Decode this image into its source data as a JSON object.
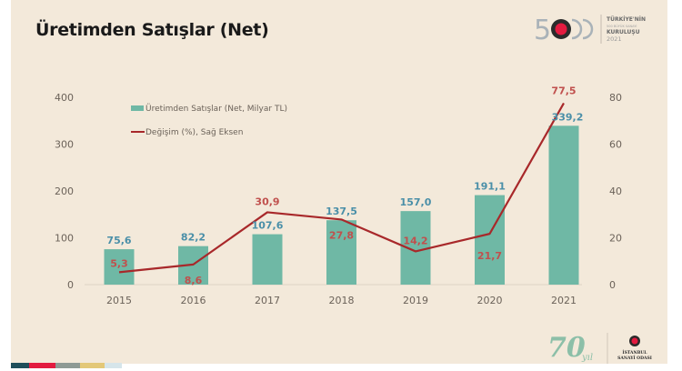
{
  "header": {
    "title": "Üretimden Satışlar (Net)"
  },
  "logos": {
    "top": {
      "number": "500",
      "line1": "TÜRKİYE'NİN",
      "line2": "500 BÜYÜK SANAYİ",
      "line3": "KURULUŞU",
      "year": "2021"
    },
    "bottom": {
      "number": "70",
      "suffix": "yıl",
      "org_line1": "İSTANBUL",
      "org_line2": "SANAYİ ODASI"
    }
  },
  "footer_stripe_colors": [
    "#1f4e5a",
    "#e31b40",
    "#8e9a95",
    "#e3c878",
    "#d6e5ea"
  ],
  "chart_data": {
    "type": "bar",
    "title": "Üretimden Satışlar (Net)",
    "categories": [
      "2015",
      "2016",
      "2017",
      "2018",
      "2019",
      "2020",
      "2021"
    ],
    "series": [
      {
        "name": "Üretimden Satışlar (Net, Milyar TL)",
        "type": "bar",
        "axis": "left",
        "color": "#6fb8a5",
        "label_color": "#4a8fa8",
        "values": [
          75.6,
          82.2,
          107.6,
          137.5,
          157.0,
          191.1,
          339.2
        ],
        "labels": [
          "75,6",
          "82,2",
          "107,6",
          "137,5",
          "157,0",
          "191,1",
          "339,2"
        ]
      },
      {
        "name": "Değişim (%), Sağ Eksen",
        "type": "line",
        "axis": "right",
        "color": "#a8282a",
        "label_color": "#c0504d",
        "values": [
          5.3,
          8.6,
          30.9,
          27.8,
          14.2,
          21.7,
          77.5
        ],
        "labels": [
          "5,3",
          "8,6",
          "30,9",
          "27,8",
          "14,2",
          "21,7",
          "77,5"
        ]
      }
    ],
    "left_axis": {
      "min": 0,
      "max": 400,
      "ticks": [
        0,
        100,
        200,
        300,
        400
      ],
      "tick_labels": [
        "0",
        "100",
        "200",
        "300",
        "400"
      ]
    },
    "right_axis": {
      "min": 0,
      "max": 80,
      "ticks": [
        0,
        20,
        40,
        60,
        80
      ],
      "tick_labels": [
        "0",
        "20",
        "40",
        "60",
        "80"
      ]
    },
    "xlabel": "",
    "ylabel": "",
    "grid": false,
    "legend": {
      "position": "top-left",
      "entries": [
        "Üretimden Satışlar (Net, Milyar TL)",
        "Değişim (%), Sağ Eksen"
      ]
    }
  }
}
